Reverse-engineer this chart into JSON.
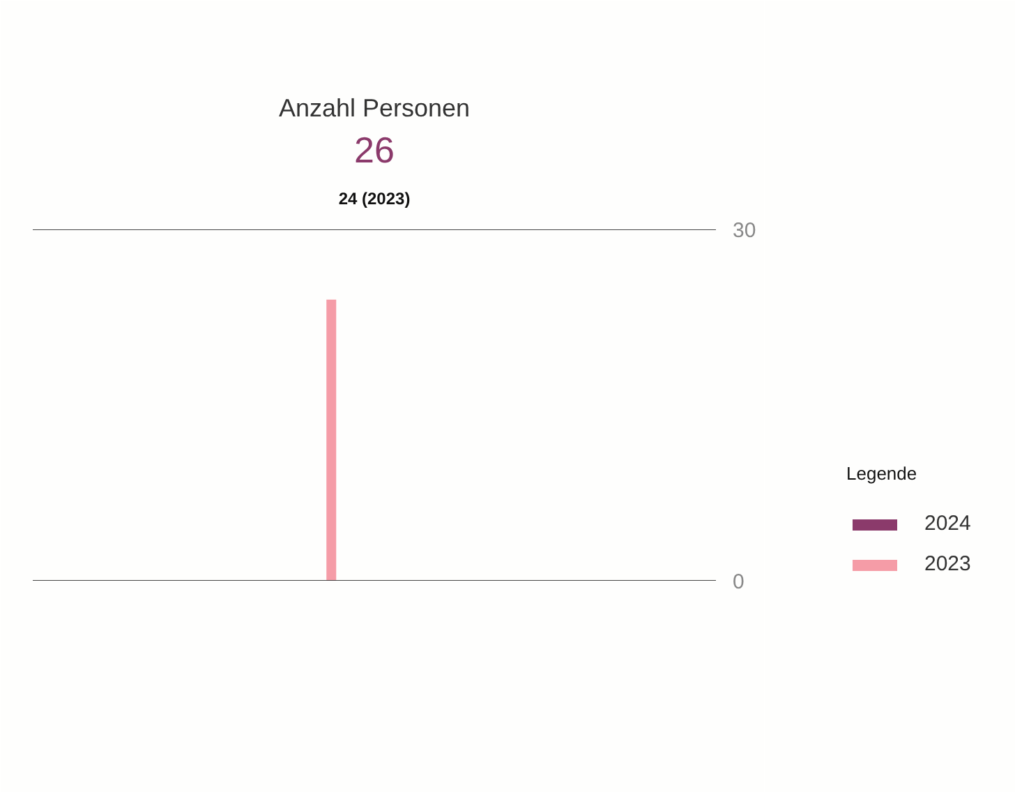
{
  "chart_data": {
    "type": "bar",
    "title": "Anzahl Personen",
    "annotations": [
      "26",
      "24 (2023)"
    ],
    "categories": [
      null
    ],
    "series": [
      {
        "name": "2024",
        "color": "#8b3a6b",
        "values": [
          null
        ]
      },
      {
        "name": "2023",
        "color": "#f59ca7",
        "values": [
          24
        ]
      }
    ],
    "legend_title": "Legende",
    "legend": "right",
    "ylim": [
      0,
      30
    ],
    "yticks": [
      0,
      30
    ],
    "grid": "y",
    "tick_labels": "y"
  }
}
